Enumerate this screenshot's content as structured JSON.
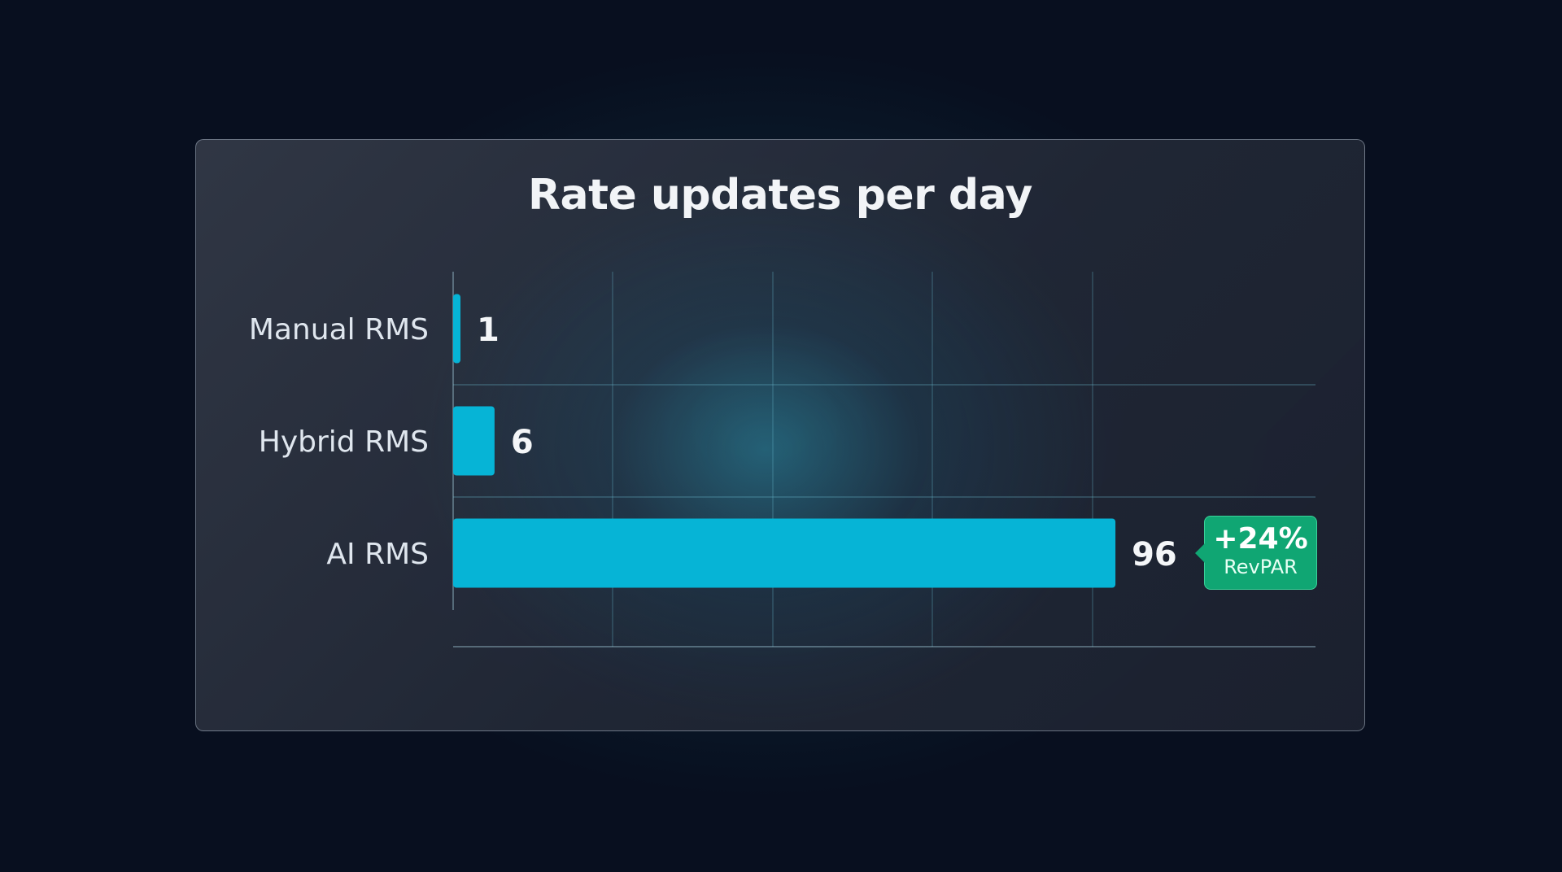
{
  "chart_data": {
    "type": "bar",
    "orientation": "horizontal",
    "title": "Rate updates per day",
    "categories": [
      "Manual RMS",
      "Hybrid RMS",
      "AI RMS"
    ],
    "values": [
      1,
      6,
      96
    ],
    "value_labels": [
      "1",
      "6",
      "96"
    ],
    "xlim": [
      0,
      125
    ],
    "grid": true,
    "bar_color": "#06b4d6",
    "annotation": {
      "category": "AI RMS",
      "value": "+24%",
      "label": "RevPAR",
      "color": "#10a673"
    }
  }
}
